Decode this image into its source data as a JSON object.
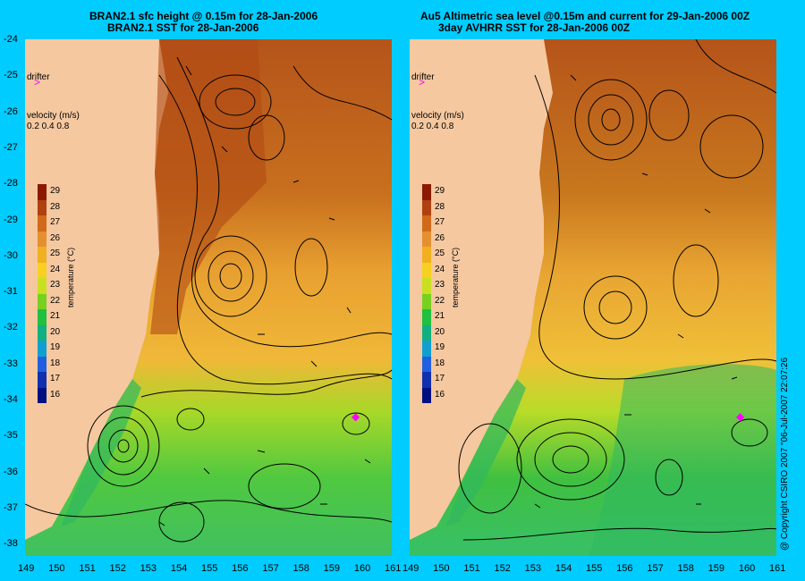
{
  "left_panel": {
    "title_line1": "BRAN2.1 sfc height @ 0.15m for 28-Jan-2006",
    "title_line2": "BRAN2.1 SST for 28-Jan-2006",
    "drifter_label": "drifter",
    "velocity_label": "velocity (m/s)",
    "velocity_scale": "0.2 0.4 0.8",
    "colorbar_label": "temperature (°C)"
  },
  "right_panel": {
    "title_line1": "Au5 Altimetric sea level  @0.15m and current for 29-Jan-2006 00Z",
    "title_line2": "3day AVHRR SST for 28-Jan-2006 00Z",
    "drifter_label": "drifter",
    "velocity_label": "velocity (m/s)",
    "velocity_scale": "0.2 0.4 0.8",
    "colorbar_label": "temperature (°C)"
  },
  "colorbar": {
    "ticks": [
      "29",
      "28",
      "27",
      "26",
      "25",
      "24",
      "23",
      "22",
      "21",
      "20",
      "19",
      "18",
      "17",
      "16"
    ],
    "colors": [
      "#8b1a00",
      "#b04010",
      "#d06a1a",
      "#e49030",
      "#f0b020",
      "#f8d020",
      "#c8e020",
      "#78d020",
      "#20c040",
      "#10b080",
      "#10a0d0",
      "#2060e0",
      "#1030b0",
      "#001080"
    ]
  },
  "lat_ticks": [
    "-24",
    "-25",
    "-26",
    "-27",
    "-28",
    "-29",
    "-30",
    "-31",
    "-32",
    "-33",
    "-34",
    "-35",
    "-36",
    "-37",
    "-38"
  ],
  "lon_ticks_left": [
    "149",
    "150",
    "151",
    "152",
    "153",
    "154",
    "155",
    "156",
    "157",
    "158",
    "159",
    "160",
    "161"
  ],
  "lon_ticks_right": [
    "149",
    "150",
    "151",
    "152",
    "153",
    "154",
    "155",
    "156",
    "157",
    "158",
    "159",
    "160",
    "161"
  ],
  "copyright": "@ Copyright CSIRO 2007 \"06-Jul-2007 22:07:26"
}
